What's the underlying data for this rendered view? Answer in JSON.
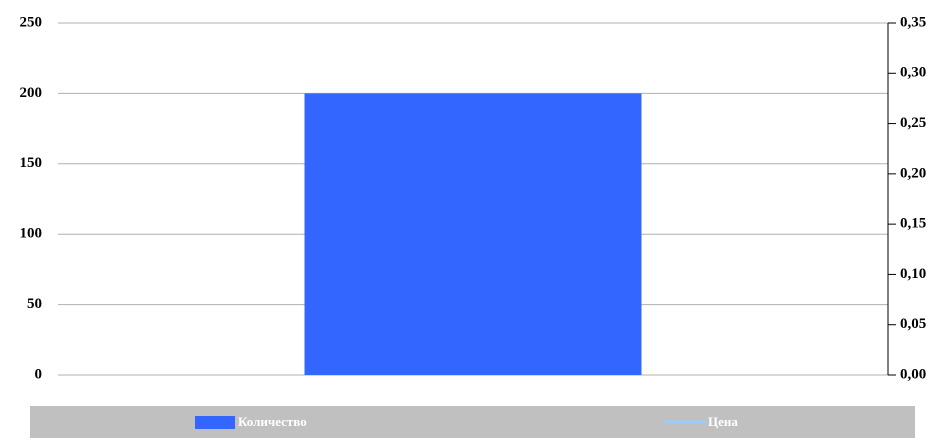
{
  "chart_data": {
    "type": "bar",
    "categories": [
      null
    ],
    "series": [
      {
        "name": "Количество",
        "color": "#3366ff",
        "values": [
          200
        ]
      },
      {
        "name": "Цена",
        "color": "#99ccff",
        "values": [
          null
        ],
        "axis": "y2",
        "type": "line"
      }
    ],
    "ylim": [
      0,
      250
    ],
    "yticks": [
      0,
      50,
      100,
      150,
      200,
      250
    ],
    "y2lim": [
      0,
      0.35
    ],
    "y2ticks": [
      {
        "value": 0,
        "label": "0,00"
      },
      {
        "value": 0.05,
        "label": "0,05"
      },
      {
        "value": 0.1,
        "label": "0,10"
      },
      {
        "value": 0.15,
        "label": "0,15"
      },
      {
        "value": 0.2,
        "label": "0,20"
      },
      {
        "value": 0.25,
        "label": "0,25"
      },
      {
        "value": 0.3,
        "label": "0,30"
      },
      {
        "value": 0.35,
        "label": "0,35"
      }
    ],
    "grid": true,
    "legend": "bottom"
  }
}
